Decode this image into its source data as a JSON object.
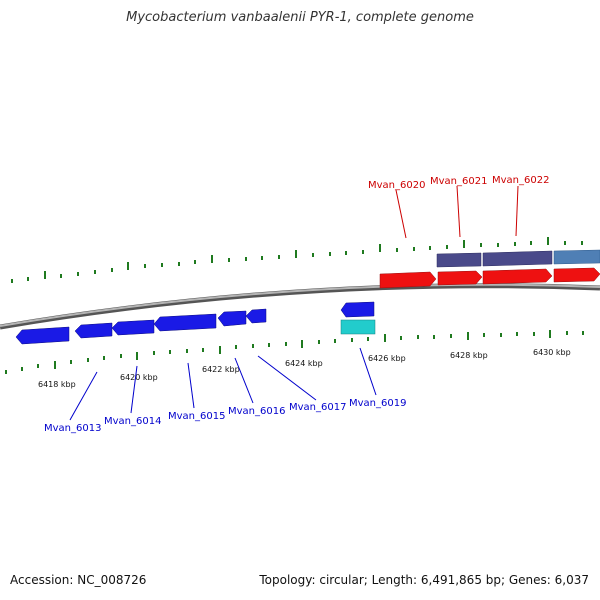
{
  "title": "Mycobacterium vanbaalenii PYR-1, complete genome",
  "accession": "Accession: NC_008726",
  "summary": "Topology: circular; Length: 6,491,865 bp; Genes: 6,037",
  "colors": {
    "backbone": "#8a8a8a",
    "tick": "#1f7a1f",
    "forward_gene": "#ee1111",
    "reverse_gene": "#1a1ae6",
    "label_top": "#cc0000",
    "label_bottom": "#0000cc",
    "top_track_a": "#4a4a8a",
    "top_track_b": "#4f7fb5",
    "teal": "#22cccc"
  },
  "scale_labels": [
    "6418 kbp",
    "6420 kbp",
    "6422 kbp",
    "6424 kbp",
    "6426 kbp",
    "6428 kbp",
    "6430 kbp"
  ],
  "top_labels": [
    "Mvan_6020",
    "Mvan_6021",
    "Mvan_6022"
  ],
  "bottom_labels": [
    "Mvan_6013",
    "Mvan_6014",
    "Mvan_6015",
    "Mvan_6016",
    "Mvan_6017",
    "Mvan_6019"
  ]
}
